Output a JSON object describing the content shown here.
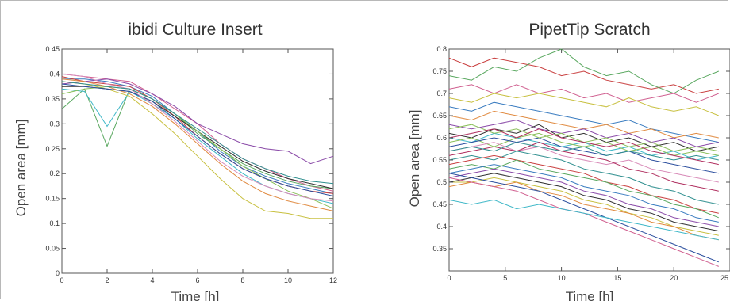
{
  "chart_data": [
    {
      "type": "line",
      "title": "ibidi Culture Insert",
      "xlabel": "Time [h]",
      "ylabel": "Open area [mm]",
      "xlim": [
        0,
        12
      ],
      "ylim": [
        0,
        0.45
      ],
      "xticks": [
        "0",
        "2",
        "4",
        "6",
        "8",
        "10",
        "12"
      ],
      "yticks": [
        "0",
        "0.05",
        "0.1",
        "0.15",
        "0.2",
        "0.25",
        "0.3",
        "0.35",
        "0.4",
        "0.45"
      ],
      "grid": false,
      "x": [
        0,
        1,
        2,
        3,
        4,
        5,
        6,
        7,
        8,
        9,
        10,
        11,
        12
      ],
      "series": [
        {
          "color": "#d06090",
          "values": [
            0.4,
            0.395,
            0.39,
            0.385,
            0.36,
            0.33,
            0.3,
            0.26,
            0.23,
            0.21,
            0.19,
            0.175,
            0.165
          ]
        },
        {
          "color": "#3a7cc0",
          "values": [
            0.39,
            0.39,
            0.385,
            0.375,
            0.355,
            0.32,
            0.285,
            0.245,
            0.215,
            0.195,
            0.18,
            0.17,
            0.16
          ]
        },
        {
          "color": "#c94040",
          "values": [
            0.395,
            0.385,
            0.38,
            0.375,
            0.35,
            0.315,
            0.275,
            0.24,
            0.21,
            0.19,
            0.175,
            0.165,
            0.16
          ]
        },
        {
          "color": "#8a4aa8",
          "values": [
            0.38,
            0.385,
            0.39,
            0.38,
            0.36,
            0.335,
            0.3,
            0.28,
            0.26,
            0.25,
            0.245,
            0.22,
            0.235
          ]
        },
        {
          "color": "#5aa860",
          "values": [
            0.33,
            0.37,
            0.255,
            0.37,
            0.35,
            0.32,
            0.28,
            0.25,
            0.22,
            0.2,
            0.185,
            0.175,
            0.17
          ]
        },
        {
          "color": "#40b8c8",
          "values": [
            0.37,
            0.365,
            0.295,
            0.365,
            0.34,
            0.31,
            0.27,
            0.235,
            0.2,
            0.175,
            0.16,
            0.15,
            0.14
          ]
        },
        {
          "color": "#c8c040",
          "values": [
            0.385,
            0.38,
            0.37,
            0.355,
            0.32,
            0.28,
            0.235,
            0.19,
            0.15,
            0.125,
            0.12,
            0.11,
            0.11
          ]
        },
        {
          "color": "#303030",
          "values": [
            0.375,
            0.375,
            0.37,
            0.365,
            0.345,
            0.315,
            0.285,
            0.255,
            0.225,
            0.205,
            0.19,
            0.18,
            0.17
          ]
        },
        {
          "color": "#8bbf5a",
          "values": [
            0.36,
            0.37,
            0.375,
            0.37,
            0.35,
            0.32,
            0.285,
            0.25,
            0.215,
            0.19,
            0.165,
            0.15,
            0.13
          ]
        },
        {
          "color": "#e08a40",
          "values": [
            0.39,
            0.385,
            0.375,
            0.36,
            0.335,
            0.3,
            0.26,
            0.22,
            0.185,
            0.16,
            0.145,
            0.135,
            0.125
          ]
        },
        {
          "color": "#2c4f9e",
          "values": [
            0.38,
            0.375,
            0.37,
            0.365,
            0.345,
            0.31,
            0.275,
            0.24,
            0.21,
            0.19,
            0.175,
            0.165,
            0.155
          ]
        },
        {
          "color": "#d88ab8",
          "values": [
            0.4,
            0.395,
            0.38,
            0.37,
            0.34,
            0.305,
            0.265,
            0.225,
            0.195,
            0.175,
            0.16,
            0.15,
            0.145
          ]
        },
        {
          "color": "#2f8f8f",
          "values": [
            0.385,
            0.38,
            0.375,
            0.37,
            0.35,
            0.32,
            0.29,
            0.26,
            0.23,
            0.21,
            0.195,
            0.185,
            0.18
          ]
        }
      ]
    },
    {
      "type": "line",
      "title": "PipetTip Scratch",
      "xlabel": "Time [h]",
      "ylabel": "Open area [mm]",
      "xlim": [
        0,
        25
      ],
      "ylim": [
        0.3,
        0.8
      ],
      "xticks": [
        "0",
        "5",
        "10",
        "15",
        "20",
        "25"
      ],
      "yticks": [
        "0.35",
        "0.4",
        "0.45",
        "0.5",
        "0.55",
        "0.6",
        "0.65",
        "0.7",
        "0.75",
        "0.8"
      ],
      "grid": false,
      "x": [
        0,
        2,
        4,
        6,
        8,
        10,
        12,
        14,
        16,
        18,
        20,
        22,
        24
      ],
      "series": [
        {
          "color": "#c94040",
          "values": [
            0.78,
            0.76,
            0.78,
            0.77,
            0.76,
            0.74,
            0.75,
            0.73,
            0.72,
            0.71,
            0.72,
            0.7,
            0.71
          ]
        },
        {
          "color": "#5aa860",
          "values": [
            0.74,
            0.73,
            0.76,
            0.75,
            0.78,
            0.8,
            0.76,
            0.74,
            0.75,
            0.72,
            0.7,
            0.73,
            0.75
          ]
        },
        {
          "color": "#d06090",
          "values": [
            0.71,
            0.72,
            0.7,
            0.72,
            0.7,
            0.71,
            0.69,
            0.7,
            0.68,
            0.69,
            0.7,
            0.68,
            0.7
          ]
        },
        {
          "color": "#c8c040",
          "values": [
            0.69,
            0.68,
            0.7,
            0.69,
            0.7,
            0.69,
            0.68,
            0.67,
            0.69,
            0.67,
            0.66,
            0.67,
            0.65
          ]
        },
        {
          "color": "#3a7cc0",
          "values": [
            0.67,
            0.66,
            0.68,
            0.67,
            0.66,
            0.65,
            0.64,
            0.63,
            0.64,
            0.62,
            0.61,
            0.6,
            0.59
          ]
        },
        {
          "color": "#e08a40",
          "values": [
            0.65,
            0.64,
            0.66,
            0.65,
            0.64,
            0.63,
            0.62,
            0.63,
            0.61,
            0.62,
            0.6,
            0.61,
            0.6
          ]
        },
        {
          "color": "#8a4aa8",
          "values": [
            0.63,
            0.62,
            0.63,
            0.64,
            0.62,
            0.61,
            0.62,
            0.6,
            0.61,
            0.59,
            0.6,
            0.58,
            0.59
          ]
        },
        {
          "color": "#303030",
          "values": [
            0.61,
            0.6,
            0.62,
            0.61,
            0.63,
            0.6,
            0.61,
            0.59,
            0.6,
            0.58,
            0.59,
            0.57,
            0.58
          ]
        },
        {
          "color": "#40b8c8",
          "values": [
            0.6,
            0.59,
            0.61,
            0.6,
            0.59,
            0.58,
            0.59,
            0.57,
            0.58,
            0.56,
            0.57,
            0.55,
            0.56
          ]
        },
        {
          "color": "#8bbf5a",
          "values": [
            0.59,
            0.6,
            0.58,
            0.6,
            0.61,
            0.59,
            0.58,
            0.59,
            0.57,
            0.58,
            0.56,
            0.57,
            0.56
          ]
        },
        {
          "color": "#2c4f9e",
          "values": [
            0.58,
            0.59,
            0.6,
            0.59,
            0.6,
            0.58,
            0.57,
            0.56,
            0.57,
            0.55,
            0.54,
            0.53,
            0.52
          ]
        },
        {
          "color": "#d88ab8",
          "values": [
            0.57,
            0.58,
            0.59,
            0.57,
            0.58,
            0.56,
            0.55,
            0.54,
            0.55,
            0.53,
            0.52,
            0.51,
            0.5
          ]
        },
        {
          "color": "#b03060",
          "values": [
            0.56,
            0.57,
            0.58,
            0.57,
            0.59,
            0.57,
            0.56,
            0.55,
            0.53,
            0.52,
            0.5,
            0.49,
            0.48
          ]
        },
        {
          "color": "#2f8f8f",
          "values": [
            0.55,
            0.56,
            0.55,
            0.57,
            0.56,
            0.55,
            0.53,
            0.52,
            0.51,
            0.49,
            0.48,
            0.46,
            0.45
          ]
        },
        {
          "color": "#c94040",
          "values": [
            0.54,
            0.55,
            0.56,
            0.55,
            0.54,
            0.53,
            0.52,
            0.5,
            0.49,
            0.47,
            0.46,
            0.44,
            0.43
          ]
        },
        {
          "color": "#5aa860",
          "values": [
            0.53,
            0.54,
            0.53,
            0.55,
            0.53,
            0.52,
            0.51,
            0.5,
            0.48,
            0.47,
            0.45,
            0.44,
            0.42
          ]
        },
        {
          "color": "#3a7cc0",
          "values": [
            0.52,
            0.53,
            0.54,
            0.53,
            0.52,
            0.51,
            0.49,
            0.48,
            0.47,
            0.45,
            0.44,
            0.42,
            0.41
          ]
        },
        {
          "color": "#8a4aa8",
          "values": [
            0.51,
            0.52,
            0.53,
            0.52,
            0.51,
            0.5,
            0.48,
            0.47,
            0.45,
            0.44,
            0.42,
            0.41,
            0.4
          ]
        },
        {
          "color": "#303030",
          "values": [
            0.5,
            0.51,
            0.52,
            0.51,
            0.5,
            0.49,
            0.47,
            0.46,
            0.44,
            0.43,
            0.41,
            0.4,
            0.39
          ]
        },
        {
          "color": "#c8c040",
          "values": [
            0.5,
            0.5,
            0.51,
            0.5,
            0.49,
            0.48,
            0.46,
            0.45,
            0.43,
            0.42,
            0.4,
            0.39,
            0.38
          ]
        },
        {
          "color": "#e08a40",
          "values": [
            0.49,
            0.5,
            0.49,
            0.5,
            0.48,
            0.47,
            0.45,
            0.44,
            0.43,
            0.41,
            0.4,
            0.38,
            0.37
          ]
        },
        {
          "color": "#2c4f9e",
          "values": [
            0.52,
            0.51,
            0.5,
            0.49,
            0.48,
            0.46,
            0.44,
            0.42,
            0.4,
            0.38,
            0.36,
            0.34,
            0.32
          ]
        },
        {
          "color": "#d06090",
          "values": [
            0.51,
            0.5,
            0.49,
            0.48,
            0.46,
            0.44,
            0.43,
            0.41,
            0.39,
            0.37,
            0.35,
            0.33,
            0.31
          ]
        },
        {
          "color": "#40b8c8",
          "values": [
            0.46,
            0.45,
            0.46,
            0.44,
            0.45,
            0.44,
            0.43,
            0.42,
            0.41,
            0.4,
            0.39,
            0.38,
            0.37
          ]
        },
        {
          "color": "#8bbf5a",
          "values": [
            0.62,
            0.63,
            0.61,
            0.62,
            0.6,
            0.61,
            0.59,
            0.6,
            0.58,
            0.59,
            0.57,
            0.58,
            0.57
          ]
        },
        {
          "color": "#b03060",
          "values": [
            0.6,
            0.61,
            0.62,
            0.6,
            0.62,
            0.6,
            0.59,
            0.58,
            0.59,
            0.57,
            0.56,
            0.55,
            0.54
          ]
        },
        {
          "color": "#2f8f8f",
          "values": [
            0.57,
            0.58,
            0.57,
            0.59,
            0.58,
            0.57,
            0.58,
            0.56,
            0.57,
            0.56,
            0.55,
            0.56,
            0.55
          ]
        }
      ]
    }
  ]
}
